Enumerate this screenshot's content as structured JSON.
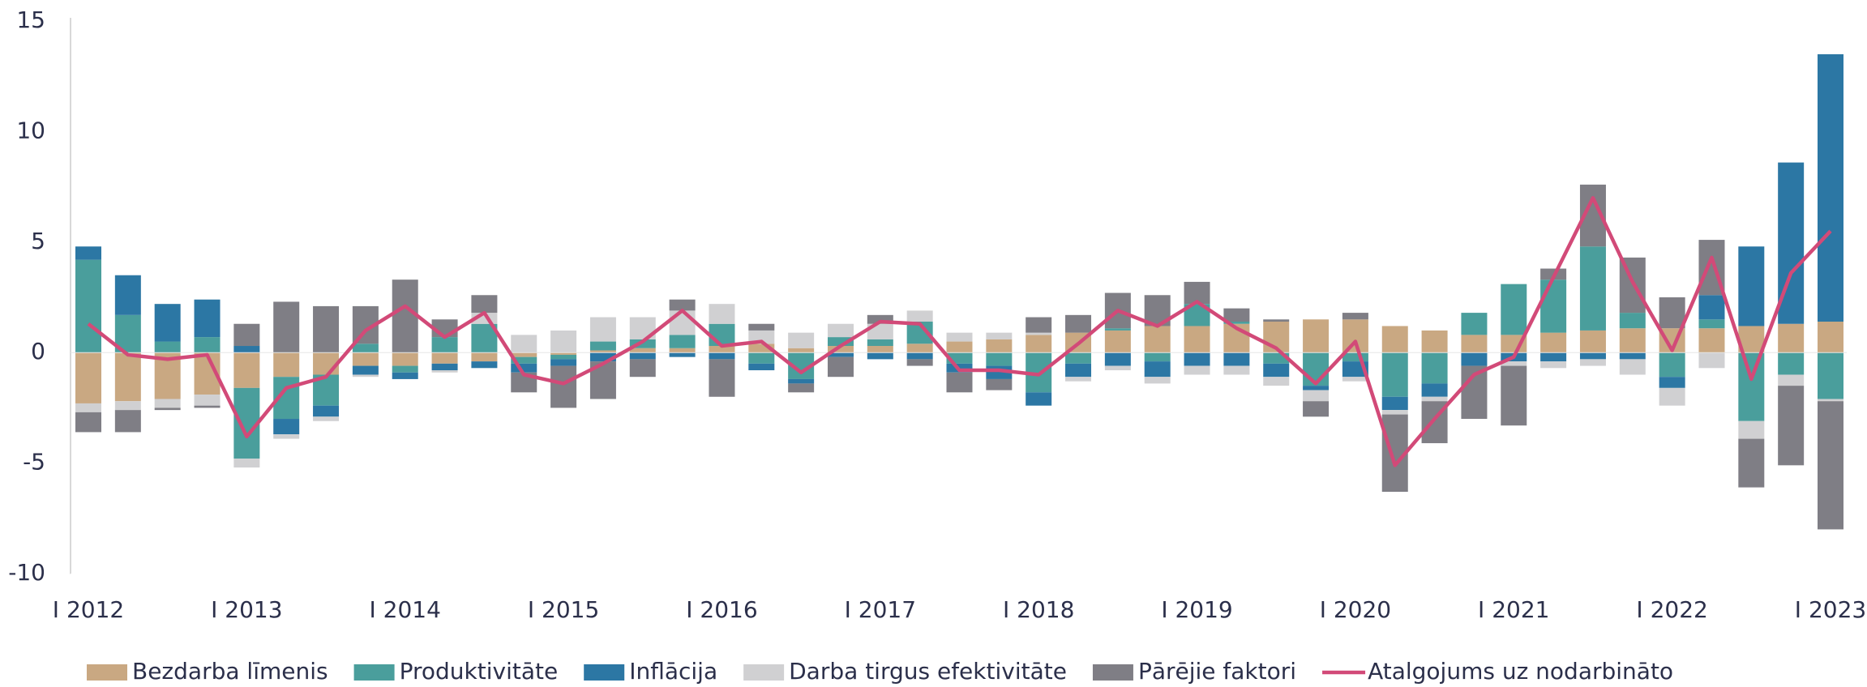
{
  "chart_data": {
    "type": "bar",
    "stacked": true,
    "categories": [
      "I 2012",
      null,
      null,
      null,
      "I 2013",
      null,
      null,
      null,
      "I 2014",
      null,
      null,
      null,
      "I 2015",
      null,
      null,
      null,
      "I 2016",
      null,
      null,
      null,
      "I 2017",
      null,
      null,
      null,
      "I 2018",
      null,
      null,
      null,
      "I 2019",
      null,
      null,
      null,
      "I 2020",
      null,
      null,
      null,
      "I 2021",
      null,
      null,
      null,
      "I 2022",
      null,
      null,
      null,
      "I 2023"
    ],
    "ylim": [
      -10,
      15
    ],
    "yticks": [
      -10,
      -5,
      0,
      5,
      10,
      15
    ],
    "series": [
      {
        "name": "Bezdarba līmenis",
        "color": "#c9a882",
        "values": [
          -2.3,
          -2.2,
          -2.1,
          -1.9,
          -1.6,
          -1.1,
          -1.0,
          -0.6,
          -0.6,
          -0.5,
          -0.4,
          -0.2,
          -0.1,
          0.1,
          0.2,
          0.2,
          0.3,
          0.4,
          0.2,
          0.3,
          0.3,
          0.4,
          0.5,
          0.6,
          0.8,
          0.9,
          1.0,
          1.2,
          1.2,
          1.3,
          1.4,
          1.5,
          1.5,
          1.2,
          1.0,
          0.8,
          0.8,
          0.9,
          1.0,
          1.1,
          1.1,
          1.1,
          1.2,
          1.3,
          1.4
        ]
      },
      {
        "name": "Produktivitāte",
        "color": "#4a9e9c",
        "values": [
          4.2,
          1.7,
          0.5,
          0.7,
          -3.2,
          -1.9,
          -1.4,
          0.4,
          -0.3,
          0.7,
          1.3,
          -0.3,
          -0.2,
          0.4,
          0.4,
          0.6,
          1.0,
          -0.5,
          -1.2,
          0.4,
          0.3,
          1.0,
          -0.5,
          -0.6,
          -1.8,
          -0.5,
          0.1,
          -0.4,
          1.0,
          0.1,
          -0.5,
          -1.5,
          -0.4,
          -2.0,
          -1.4,
          1.0,
          2.3,
          2.4,
          3.8,
          0.7,
          -1.1,
          0.4,
          -3.1,
          -1.0,
          -2.1
        ]
      },
      {
        "name": "Inflācija",
        "color": "#2c77a4",
        "values": [
          0.6,
          1.8,
          1.7,
          1.7,
          0.3,
          -0.7,
          -0.5,
          -0.4,
          -0.3,
          -0.3,
          -0.3,
          -0.4,
          -0.3,
          -0.4,
          -0.3,
          -0.2,
          -0.3,
          -0.3,
          -0.2,
          -0.2,
          -0.3,
          -0.3,
          -0.4,
          -0.6,
          -0.6,
          -0.6,
          -0.6,
          -0.7,
          -0.6,
          -0.6,
          -0.6,
          -0.2,
          -0.7,
          -0.6,
          -0.6,
          -0.6,
          -0.4,
          -0.4,
          -0.3,
          -0.3,
          -0.5,
          1.1,
          3.6,
          7.3,
          12.1
        ]
      },
      {
        "name": "Darba tirgus efektivitāte",
        "color": "#d0d0d2",
        "values": [
          -0.4,
          -0.4,
          -0.4,
          -0.5,
          -0.4,
          -0.2,
          -0.2,
          -0.1,
          0,
          -0.1,
          0.5,
          0.8,
          1.0,
          1.1,
          1.0,
          1.1,
          0.9,
          0.6,
          0.7,
          0.6,
          0.7,
          0.5,
          0.4,
          0.3,
          0.1,
          -0.2,
          -0.2,
          -0.3,
          -0.4,
          -0.4,
          -0.4,
          -0.5,
          -0.2,
          -0.2,
          -0.2,
          0,
          -0.2,
          -0.3,
          -0.3,
          -0.7,
          -0.8,
          -0.7,
          -0.8,
          -0.5,
          -0.1
        ]
      },
      {
        "name": "Pārējie faktori",
        "color": "#7f7e85",
        "values": [
          -0.9,
          -1.0,
          -0.1,
          -0.1,
          1.0,
          2.3,
          2.1,
          1.7,
          3.3,
          0.8,
          0.8,
          -0.9,
          -1.9,
          -1.7,
          -0.8,
          0.5,
          -1.7,
          0.3,
          -0.4,
          -0.9,
          0.4,
          -0.3,
          -0.9,
          -0.5,
          0.7,
          0.8,
          1.6,
          1.4,
          1.0,
          0.6,
          0.1,
          -0.7,
          0.3,
          -3.5,
          -1.9,
          -2.4,
          -2.7,
          0.5,
          2.8,
          2.5,
          1.4,
          2.5,
          -2.2,
          -3.6,
          -5.8
        ]
      },
      {
        "name": "Atalgojums uz nodarbināto",
        "type": "line",
        "color": "#d24a78",
        "values": [
          1.3,
          -0.1,
          -0.3,
          -0.1,
          -3.8,
          -1.6,
          -1.1,
          1.0,
          2.1,
          0.7,
          1.8,
          -1.0,
          -1.4,
          -0.5,
          0.5,
          1.9,
          0.3,
          0.5,
          -0.9,
          0.3,
          1.4,
          1.3,
          -0.8,
          -0.8,
          -1.0,
          0.4,
          1.9,
          1.2,
          2.3,
          1.1,
          0.2,
          -1.4,
          0.5,
          -5.1,
          -3.0,
          -1.0,
          -0.2,
          3.4,
          7.0,
          3.2,
          0.1,
          4.3,
          -1.2,
          3.6,
          5.5
        ]
      }
    ]
  }
}
